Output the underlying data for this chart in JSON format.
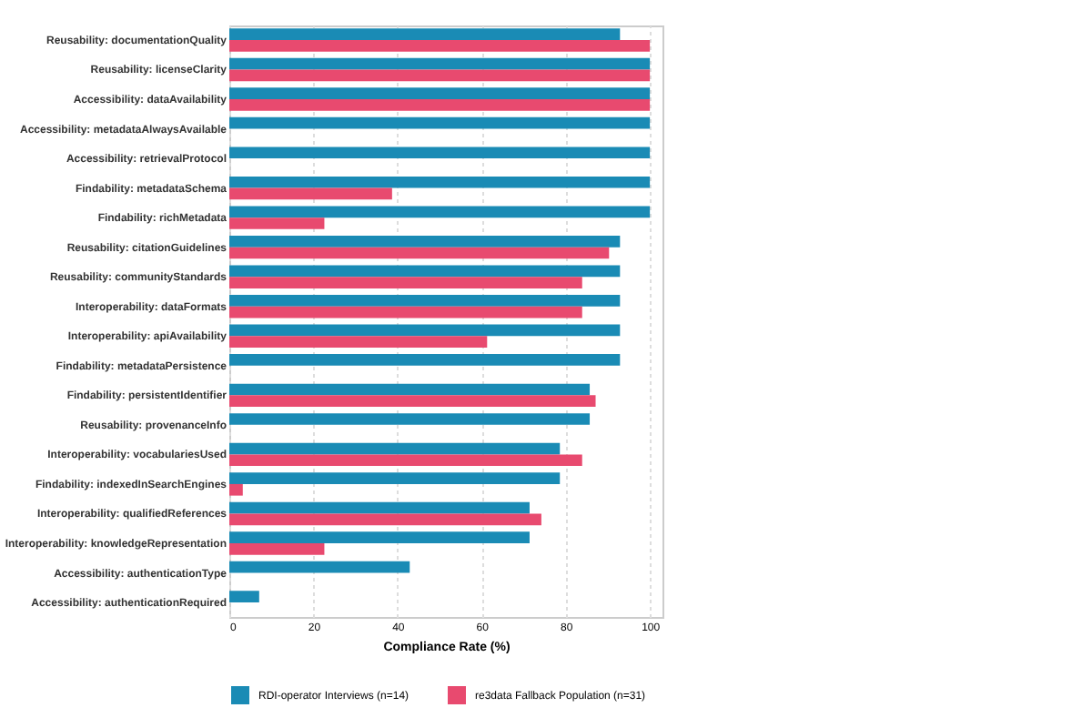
{
  "chart_data": {
    "type": "bar",
    "orientation": "horizontal",
    "xlabel": "Compliance Rate (%)",
    "categories": [
      "Reusability: documentationQuality",
      "Reusability: licenseClarity",
      "Accessibility: dataAvailability",
      "Accessibility: metadataAlwaysAvailable",
      "Accessibility: retrievalProtocol",
      "Findability: metadataSchema",
      "Findability: richMetadata",
      "Reusability: citationGuidelines",
      "Reusability: communityStandards",
      "Interoperability: dataFormats",
      "Interoperability: apiAvailability",
      "Findability: metadataPersistence",
      "Findability: persistentIdentifier",
      "Reusability: provenanceInfo",
      "Interoperability: vocabulariesUsed",
      "Findability: indexedInSearchEngines",
      "Interoperability: qualifiedReferences",
      "Interoperability: knowledgeRepresentation",
      "Accessibility: authenticationType",
      "Accessibility: authenticationRequired"
    ],
    "series": [
      {
        "name": "RDI-operator Interviews (n=14)",
        "color": "#1a8bb5",
        "values": [
          92.9,
          100,
          100,
          100,
          100,
          100,
          100,
          92.9,
          92.9,
          92.9,
          92.9,
          92.9,
          85.7,
          85.7,
          78.6,
          78.6,
          71.4,
          71.4,
          42.9,
          7.1
        ]
      },
      {
        "name": "re3data Fallback Population (n=31)",
        "color": "#e84a6f",
        "values": [
          100,
          100,
          100,
          null,
          null,
          38.7,
          22.6,
          90.3,
          83.9,
          83.9,
          61.3,
          null,
          87.1,
          null,
          83.9,
          3.2,
          74.2,
          22.6,
          null,
          null
        ]
      }
    ],
    "xlim": [
      0,
      103
    ],
    "xticks": [
      0,
      20,
      40,
      60,
      80,
      100
    ],
    "grid": "x",
    "legend": "bottom"
  }
}
